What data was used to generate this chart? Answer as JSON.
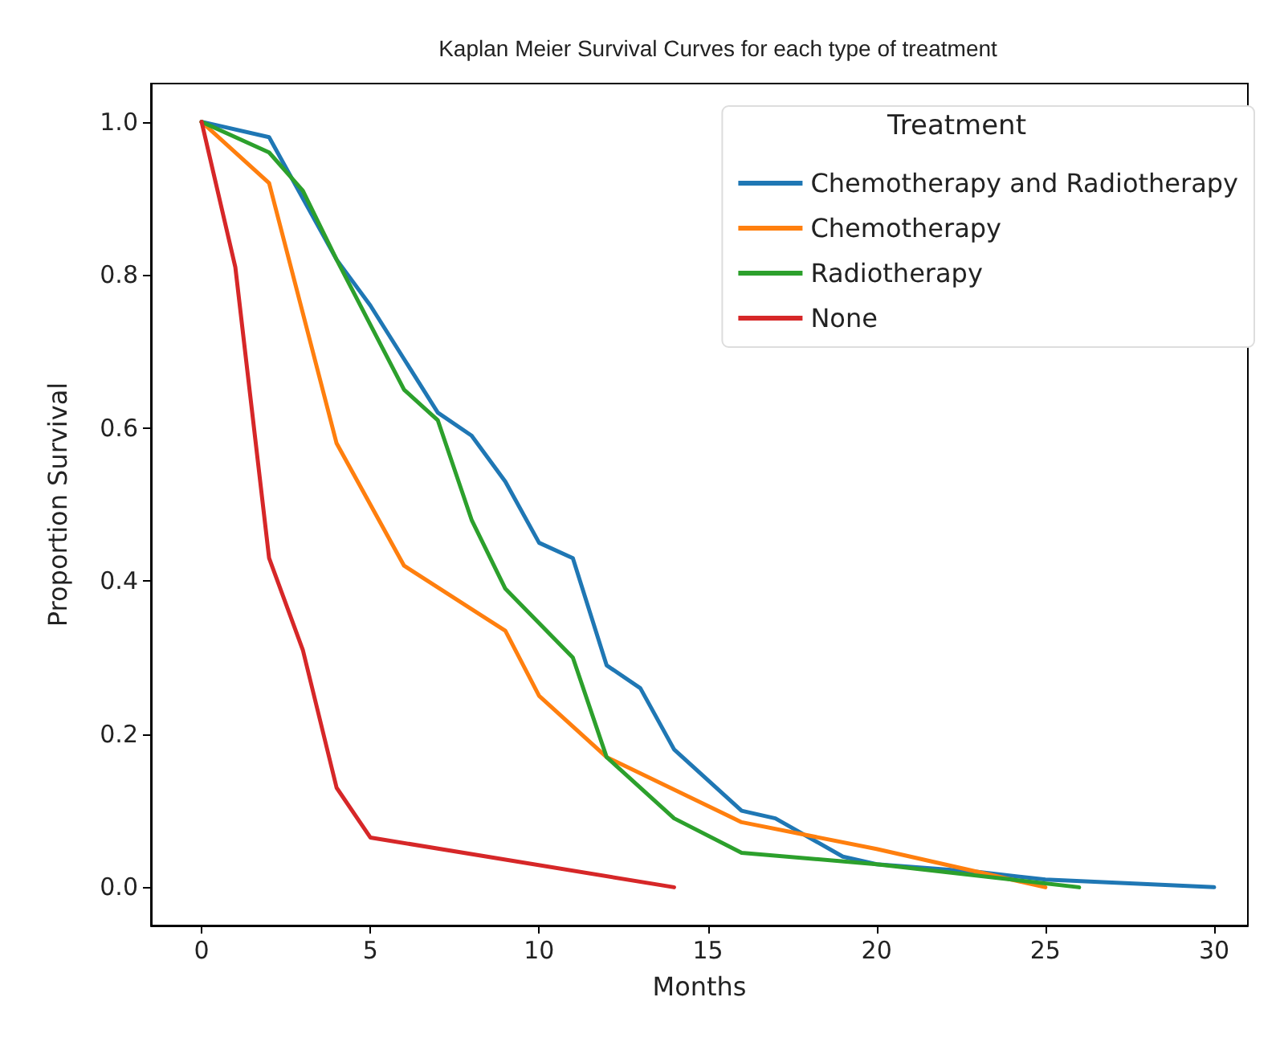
{
  "chart_data": {
    "type": "line",
    "title": "Kaplan Meier Survival Curves for each type of treatment",
    "xlabel": "Months",
    "ylabel": "Proportion Survival",
    "legend_title": "Treatment",
    "legend": "top right",
    "grid": false,
    "xlim": [
      -1.5,
      31
    ],
    "xticks": [
      0,
      5,
      10,
      15,
      20,
      25,
      30
    ],
    "ylim": [
      -0.05,
      1.05
    ],
    "yticks": [
      {
        "value": 0,
        "label": "0.0"
      },
      {
        "value": 0.2,
        "label": "0.2"
      },
      {
        "value": 0.4,
        "label": "0.4"
      },
      {
        "value": 0.6,
        "label": "0.6"
      },
      {
        "value": 0.8,
        "label": "0.8"
      },
      {
        "value": 1,
        "label": "1.0"
      }
    ],
    "series": [
      {
        "name": "Chemotherapy and Radiotherapy",
        "color": "#1f77b4",
        "x": [
          0,
          2,
          4,
          5,
          6,
          7,
          8,
          9,
          10,
          11,
          12,
          13,
          14,
          16,
          17,
          19,
          20,
          23,
          25,
          30
        ],
        "values": [
          1.0,
          0.98,
          0.82,
          0.76,
          0.69,
          0.62,
          0.59,
          0.53,
          0.45,
          0.43,
          0.29,
          0.26,
          0.18,
          0.1,
          0.09,
          0.04,
          0.03,
          0.02,
          0.01,
          0.0
        ]
      },
      {
        "name": "Chemotherapy",
        "color": "#ff7f0e",
        "x": [
          0,
          2,
          4,
          6,
          9,
          10,
          12,
          16,
          20,
          23,
          25
        ],
        "values": [
          1.0,
          0.92,
          0.58,
          0.42,
          0.335,
          0.25,
          0.17,
          0.085,
          0.05,
          0.02,
          0.0
        ]
      },
      {
        "name": "Radiotherapy",
        "color": "#2ca02c",
        "x": [
          0,
          2,
          3,
          4,
          6,
          7,
          8,
          9,
          11,
          12,
          14,
          16,
          20,
          24,
          26
        ],
        "values": [
          1.0,
          0.96,
          0.91,
          0.82,
          0.65,
          0.61,
          0.48,
          0.39,
          0.3,
          0.17,
          0.09,
          0.045,
          0.03,
          0.01,
          0.0
        ]
      },
      {
        "name": "None",
        "color": "#d62728",
        "x": [
          0,
          1,
          2,
          3,
          4,
          5,
          14
        ],
        "values": [
          1.0,
          0.81,
          0.43,
          0.31,
          0.13,
          0.065,
          0.0
        ]
      }
    ]
  }
}
